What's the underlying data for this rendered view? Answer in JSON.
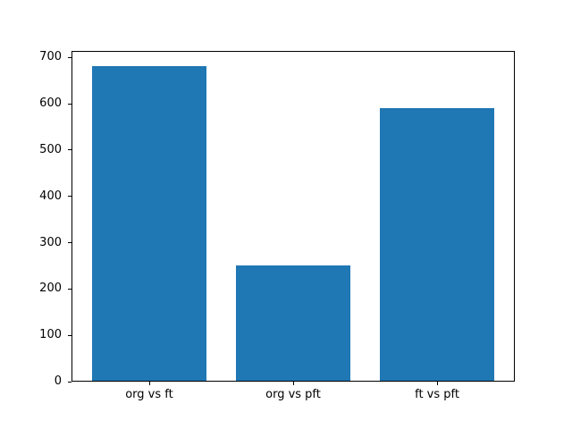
{
  "figure": {
    "background": "#ffffff"
  },
  "chart_data": {
    "type": "bar",
    "categories": [
      "org vs ft",
      "org vs pft",
      "ft vs pft"
    ],
    "values": [
      680,
      249,
      588
    ],
    "title": "",
    "xlabel": "",
    "ylabel": "",
    "ylim": [
      0,
      714
    ],
    "yticks": [
      0,
      100,
      200,
      300,
      400,
      500,
      600,
      700
    ],
    "xlim": [
      -0.54,
      2.54
    ],
    "bar_color": "#1f77b4",
    "bar_width_fraction": 0.8,
    "grid": false,
    "legend_position": "none",
    "axis_color": "#000000"
  }
}
